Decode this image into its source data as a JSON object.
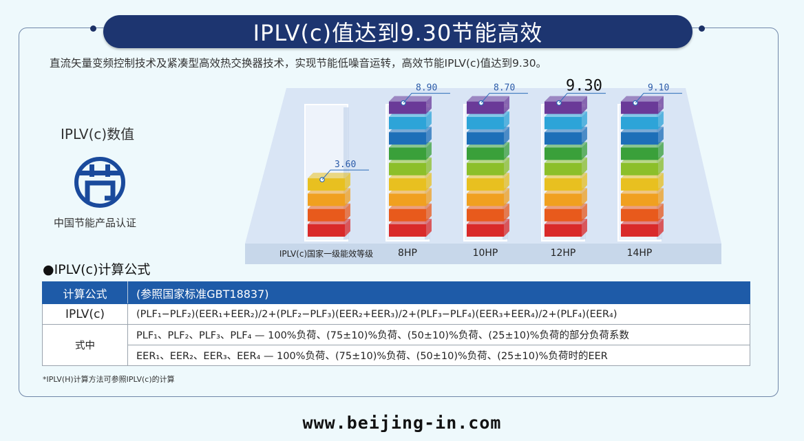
{
  "title": "IPLV(c)值达到9.30节能高效",
  "description": "直流矢量变频控制技术及紧凑型高效热交换器技术，实现节能低噪音运转，高效节能IPLV(c)值达到9.30。",
  "iplv_label": "IPLV(c)数值",
  "certification": {
    "caption": "中国节能产品认证",
    "logo_color": "#1a4a9c"
  },
  "chart_data": {
    "type": "bar",
    "categories": [
      "IPLV(c)国家一级能效等级",
      "8HP",
      "10HP",
      "12HP",
      "14HP"
    ],
    "values": [
      3.6,
      8.9,
      8.7,
      9.3,
      9.1
    ],
    "value_labels": [
      "3.60",
      "8.90",
      "8.70",
      "9.30",
      "9.10"
    ],
    "highlight_category": "12HP",
    "ylim": [
      0,
      10
    ],
    "layer_colors": [
      "#d92a2a",
      "#e85a1c",
      "#f0a020",
      "#e8c020",
      "#8cbf2a",
      "#3aa03a",
      "#1d6fb8",
      "#2da4d8",
      "#6a3a98",
      "#9a60b8"
    ]
  },
  "formula_section": {
    "title": "●IPLV(c)计算公式",
    "header": {
      "col1": "计算公式",
      "col2": "(参照国家标准GBT18837)"
    },
    "rows": [
      {
        "label": "IPLV(c)",
        "text": "(PLF₁−PLF₂)(EER₁+EER₂)/2+(PLF₂−PLF₃)(EER₂+EER₃)/2+(PLF₃−PLF₄)(EER₃+EER₄)/2+(PLF₄)(EER₄)"
      },
      {
        "label": "式中",
        "text": "PLF₁、PLF₂、PLF₃、PLF₄ — 100%负荷、(75±10)%负荷、(50±10)%负荷、(25±10)%负荷的部分负荷系数"
      },
      {
        "label": "",
        "text": "EER₁、EER₂、EER₃、EER₄ — 100%负荷、(75±10)%负荷、(50±10)%负荷、(25±10)%负荷时的EER"
      }
    ]
  },
  "footnote": "*IPLV(H)计算方法可参照IPLV(c)的计算",
  "website": "www.beijing-in.com"
}
